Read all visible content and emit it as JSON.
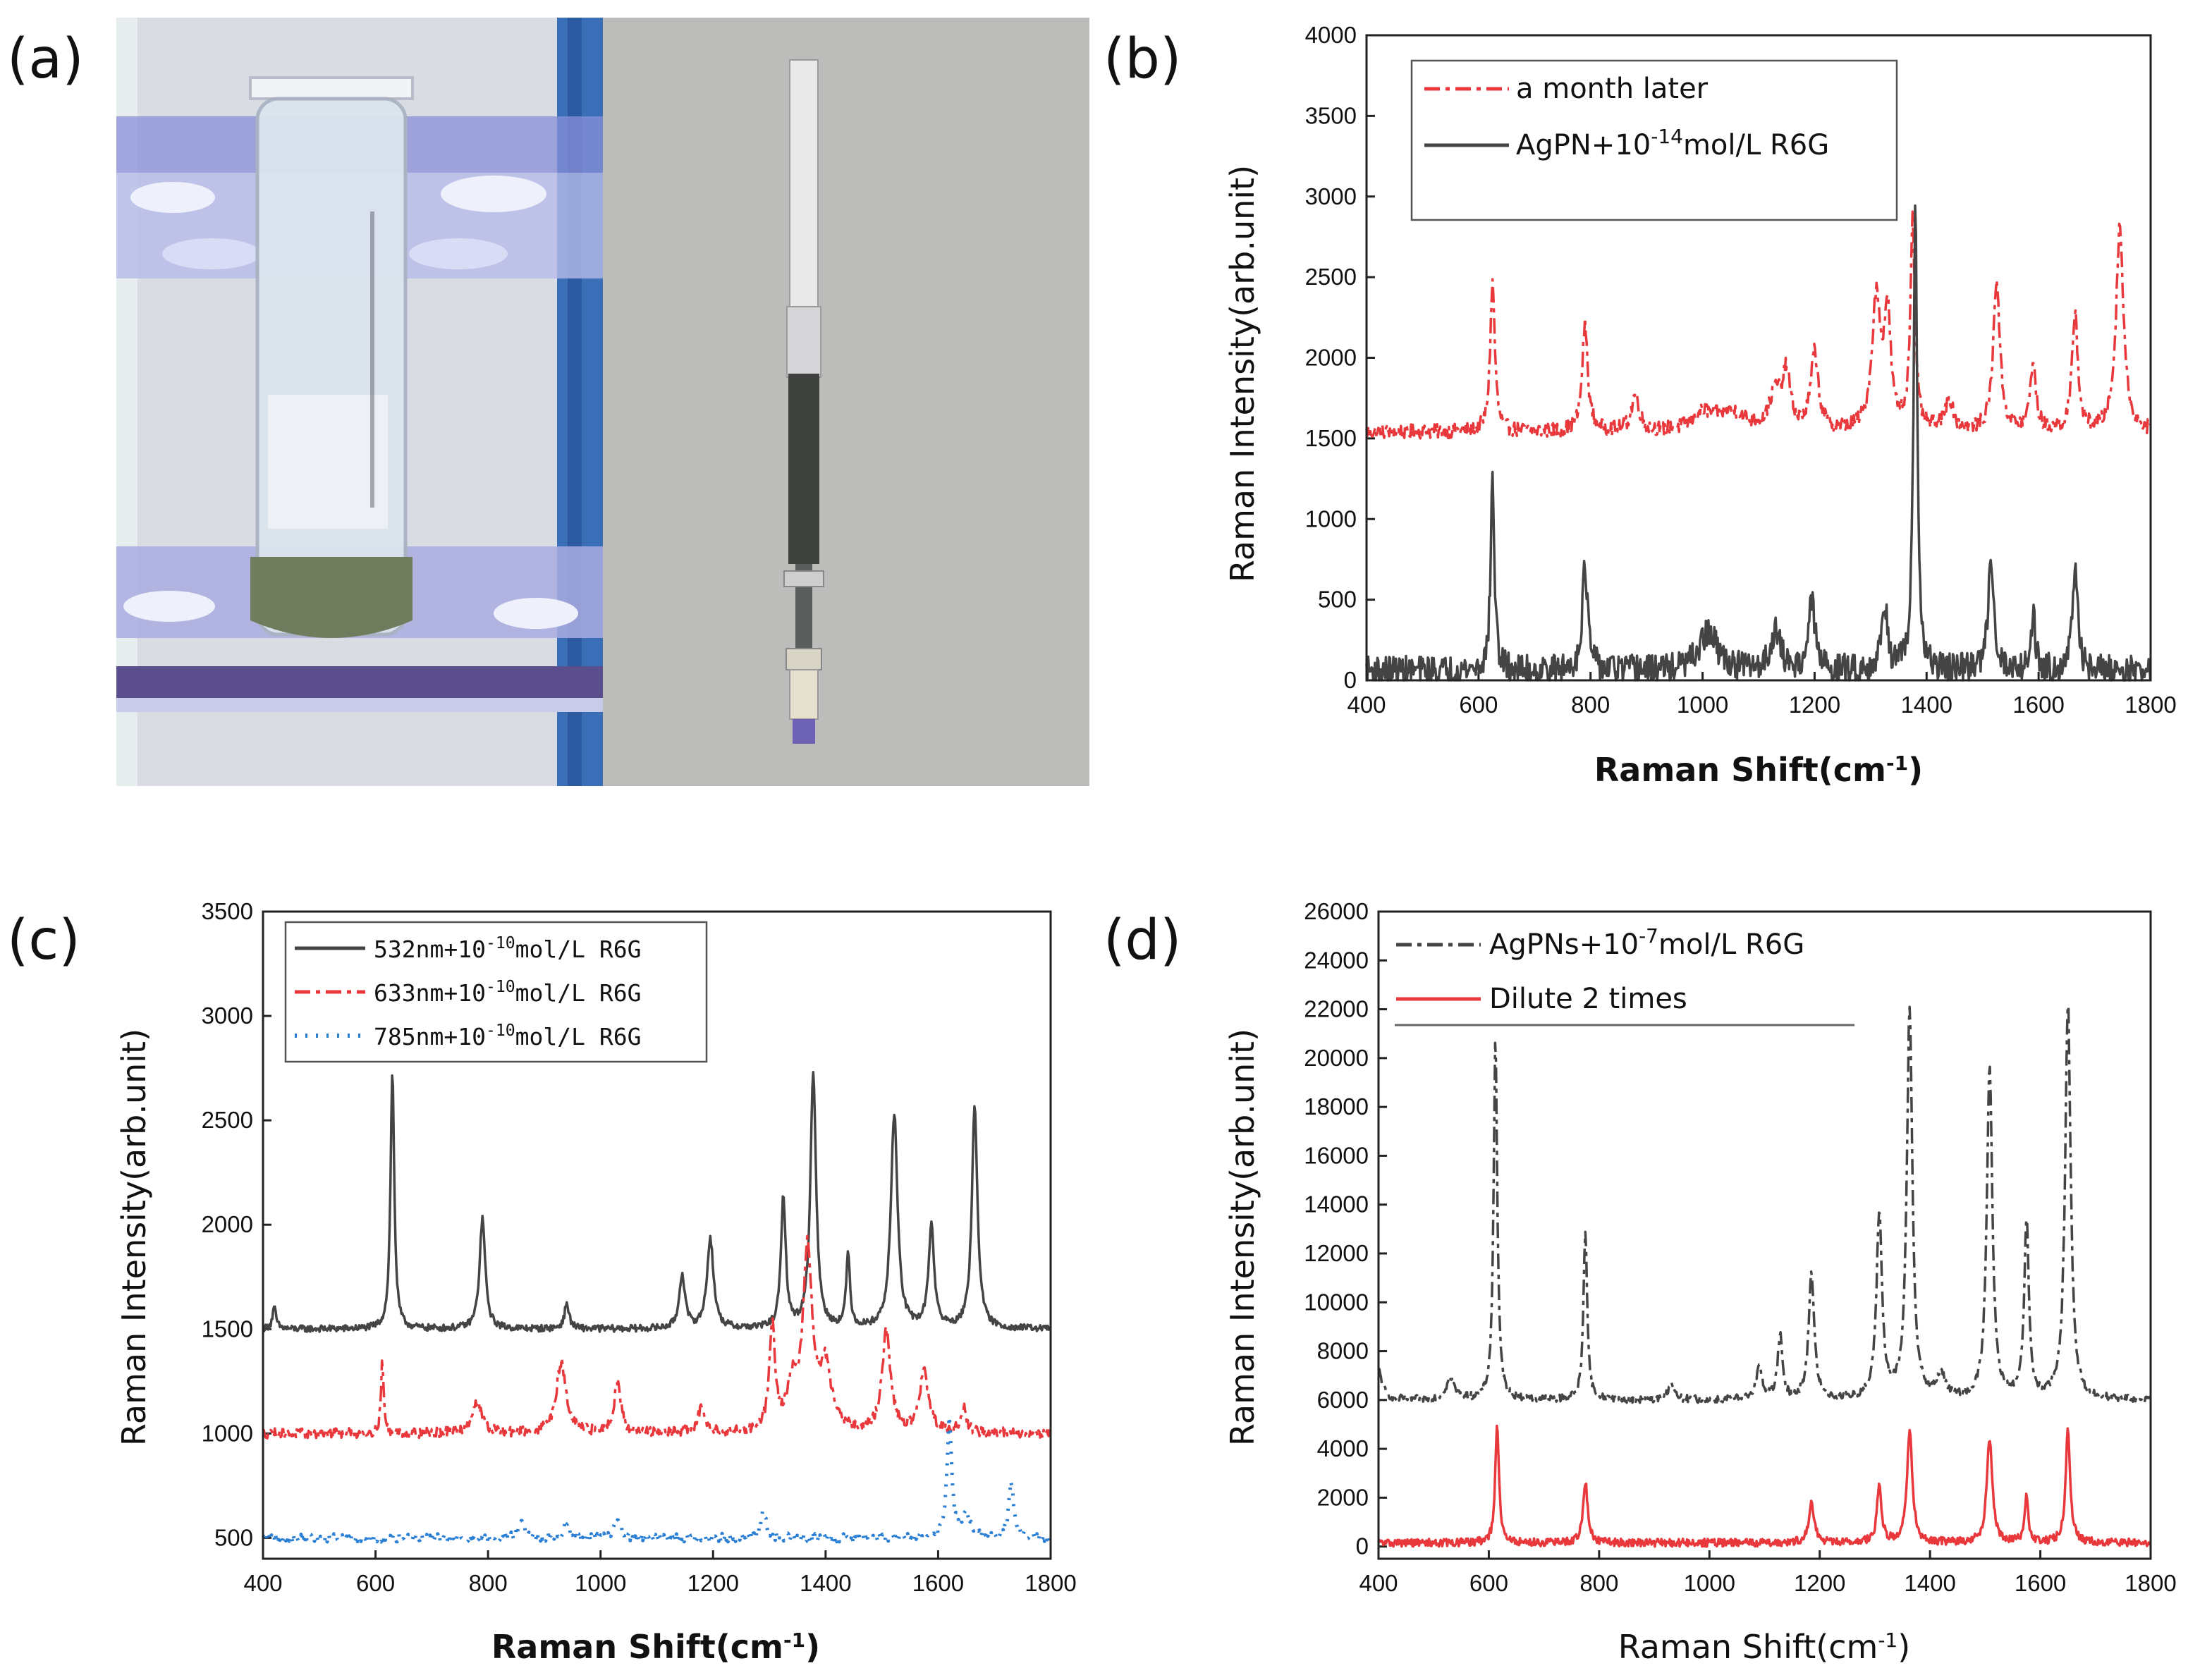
{
  "panel_a": {
    "label": "(a)",
    "photo_left": "tube-in-rack-photo",
    "photo_right": "needle-photo"
  },
  "chart_data": [
    {
      "id": "b",
      "panel_label": "(b)",
      "type": "line",
      "xlabel_main": "Raman Shift(cm",
      "xlabel_sup": "-1",
      "xlabel_tail": ")",
      "ylabel": "Raman Intensity(arb.unit)",
      "xlim": [
        400,
        1800
      ],
      "ylim": [
        0,
        4000
      ],
      "xticks": [
        "400",
        "600",
        "800",
        "1000",
        "1200",
        "1400",
        "1600",
        "1800"
      ],
      "yticks": [
        "0",
        "500",
        "1000",
        "1500",
        "2000",
        "2500",
        "3000",
        "3500",
        "4000"
      ],
      "legend": [
        {
          "name": "a month later",
          "color": "#e8383c",
          "dash": "dashdot",
          "pre": "a month later",
          "sup": "",
          "post": ""
        },
        {
          "name": "AgPN+10-14mol/L R6G",
          "color": "#444444",
          "dash": "solid",
          "pre": "AgPN+10",
          "sup": "-14",
          "post": "mol/L R6G"
        }
      ],
      "series": [
        {
          "name": "a month later",
          "baseline": 1540,
          "noise": 45,
          "peaks": [
            [
              625,
              920,
              5
            ],
            [
              790,
              660,
              6
            ],
            [
              880,
              230,
              8
            ],
            [
              1130,
              230,
              12
            ],
            [
              1150,
              330,
              8
            ],
            [
              1200,
              480,
              8
            ],
            [
              1310,
              800,
              9
            ],
            [
              1330,
              700,
              7
            ],
            [
              1375,
              1290,
              5
            ],
            [
              1440,
              200,
              8
            ],
            [
              1525,
              940,
              7
            ],
            [
              1590,
              420,
              6
            ],
            [
              1665,
              740,
              6
            ],
            [
              1745,
              1270,
              8
            ],
            [
              1050,
              120,
              30
            ],
            [
              1000,
              100,
              20
            ]
          ]
        },
        {
          "name": "AgPN+10-14mol/L R6G",
          "baseline": 60,
          "noise": 90,
          "peaks": [
            [
              625,
              1190,
              4
            ],
            [
              790,
              640,
              6
            ],
            [
              1010,
              230,
              20
            ],
            [
              1130,
              250,
              10
            ],
            [
              1195,
              420,
              7
            ],
            [
              1325,
              420,
              6
            ],
            [
              1380,
              2870,
              4
            ],
            [
              1515,
              720,
              6
            ],
            [
              1590,
              340,
              5
            ],
            [
              1665,
              600,
              6
            ]
          ]
        }
      ]
    },
    {
      "id": "c",
      "panel_label": "(c)",
      "type": "line",
      "xlabel_main": "Raman Shift(cm",
      "xlabel_sup": "-1",
      "xlabel_tail": ")",
      "ylabel": "Raman Intensity(arb.unit)",
      "xlim": [
        400,
        1800
      ],
      "ylim": [
        400,
        3500
      ],
      "xticks": [
        "400",
        "600",
        "800",
        "1000",
        "1200",
        "1400",
        "1600",
        "1800"
      ],
      "yticks": [
        "500",
        "1000",
        "1500",
        "2000",
        "2500",
        "3000",
        "3500"
      ],
      "legend": [
        {
          "name": "532nm+10-10mol/L R6G",
          "color": "#444444",
          "dash": "solid",
          "pre": "532nm+10",
          "sup": "-10",
          "post": "mol/L R6G"
        },
        {
          "name": "633nm+10-10mol/L R6G",
          "color": "#e8383c",
          "dash": "dashdot",
          "pre": "633nm+10",
          "sup": "-10",
          "post": "mol/L R6G"
        },
        {
          "name": "785nm+10-10mol/L R6G",
          "color": "#2a7fd4",
          "dash": "dotted",
          "pre": "785nm+10",
          "sup": "-10",
          "post": "mol/L R6G"
        }
      ],
      "series": [
        {
          "name": "532nm+10-10mol/L R6G",
          "baseline": 1500,
          "noise": 16,
          "peaks": [
            [
              420,
              100,
              4
            ],
            [
              630,
              1230,
              4
            ],
            [
              790,
              530,
              6
            ],
            [
              940,
              120,
              5
            ],
            [
              1145,
              260,
              6
            ],
            [
              1195,
              430,
              7
            ],
            [
              1325,
              630,
              5
            ],
            [
              1378,
              1230,
              6
            ],
            [
              1440,
              350,
              4
            ],
            [
              1522,
              1030,
              7
            ],
            [
              1588,
              490,
              6
            ],
            [
              1665,
              1060,
              6
            ]
          ]
        },
        {
          "name": "633nm+10-10mol/L R6G",
          "baseline": 1000,
          "noise": 24,
          "peaks": [
            [
              612,
              340,
              3
            ],
            [
              780,
              150,
              10
            ],
            [
              930,
              340,
              10
            ],
            [
              1030,
              250,
              7
            ],
            [
              1180,
              120,
              8
            ],
            [
              1305,
              520,
              6
            ],
            [
              1340,
              200,
              10
            ],
            [
              1368,
              860,
              10
            ],
            [
              1400,
              300,
              12
            ],
            [
              1508,
              480,
              9
            ],
            [
              1575,
              300,
              9
            ],
            [
              1645,
              120,
              6
            ]
          ]
        },
        {
          "name": "785nm+10-10mol/L R6G",
          "baseline": 500,
          "noise": 20,
          "peaks": [
            [
              860,
              80,
              6
            ],
            [
              940,
              80,
              6
            ],
            [
              1030,
              80,
              6
            ],
            [
              1290,
              140,
              5
            ],
            [
              1620,
              560,
              5
            ],
            [
              1650,
              120,
              8
            ],
            [
              1730,
              270,
              5
            ]
          ]
        }
      ]
    },
    {
      "id": "d",
      "panel_label": "(d)",
      "type": "line",
      "xlabel_main": "Raman Shift(cm",
      "xlabel_sup": "-1",
      "xlabel_tail": ")",
      "ylabel": "Raman Intensity(arb.unit)",
      "xlim": [
        400,
        1800
      ],
      "ylim": [
        -500,
        26000
      ],
      "xticks": [
        "400",
        "600",
        "800",
        "1000",
        "1200",
        "1400",
        "1600",
        "1800"
      ],
      "yticks": [
        "0",
        "2000",
        "4000",
        "6000",
        "8000",
        "10000",
        "12000",
        "14000",
        "16000",
        "18000",
        "20000",
        "22000",
        "24000",
        "26000"
      ],
      "legend": [
        {
          "name": "AgPNs+10-7mol/L R6G",
          "color": "#444444",
          "dash": "dashdot",
          "pre": "AgPNs+10",
          "sup": "-7",
          "post": "mol/L R6G"
        },
        {
          "name": "Dilute 2 times",
          "color": "#e8383c",
          "dash": "solid",
          "pre": "Dilute 2 times",
          "sup": "",
          "post": ""
        }
      ],
      "series": [
        {
          "name": "AgPNs+10-7mol/L R6G",
          "baseline": 6000,
          "noise": 150,
          "peaks": [
            [
              400,
              1200,
              8
            ],
            [
              530,
              800,
              10
            ],
            [
              612,
              14800,
              4
            ],
            [
              775,
              7000,
              4
            ],
            [
              930,
              700,
              6
            ],
            [
              1090,
              1300,
              7
            ],
            [
              1128,
              2600,
              5
            ],
            [
              1185,
              5200,
              6
            ],
            [
              1308,
              7600,
              6
            ],
            [
              1363,
              16000,
              6
            ],
            [
              1420,
              1000,
              8
            ],
            [
              1508,
              13600,
              6
            ],
            [
              1575,
              7300,
              5
            ],
            [
              1650,
              16300,
              6
            ]
          ]
        },
        {
          "name": "Dilute 2 times",
          "baseline": 150,
          "noise": 160,
          "peaks": [
            [
              615,
              4800,
              4
            ],
            [
              775,
              2500,
              5
            ],
            [
              1185,
              1600,
              6
            ],
            [
              1308,
              2300,
              5
            ],
            [
              1363,
              4500,
              6
            ],
            [
              1508,
              4300,
              6
            ],
            [
              1575,
              1900,
              4
            ],
            [
              1650,
              4600,
              5
            ]
          ]
        }
      ]
    }
  ]
}
